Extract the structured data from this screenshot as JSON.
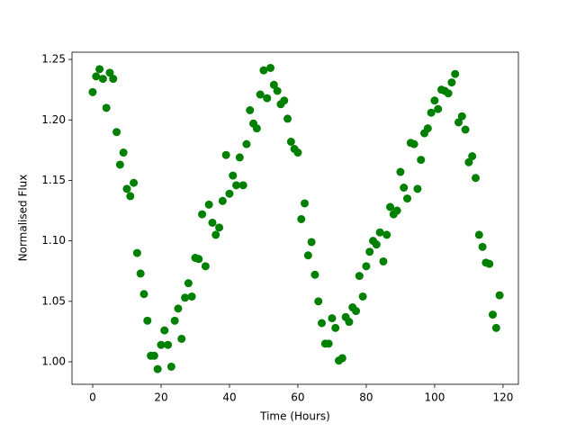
{
  "chart_data": {
    "type": "scatter",
    "x_label": "Time (Hours)",
    "y_label": "Normalised Flux",
    "color": "#008000",
    "x": [
      0,
      1,
      2,
      3,
      4,
      5,
      6,
      7,
      8,
      9,
      10,
      11,
      12,
      13,
      14,
      15,
      16,
      17,
      18,
      19,
      20,
      21,
      22,
      23,
      24,
      25,
      26,
      27,
      28,
      29,
      30,
      31,
      32,
      33,
      34,
      35,
      36,
      37,
      38,
      39,
      40,
      41,
      42,
      43,
      44,
      45,
      46,
      47,
      48,
      49,
      50,
      51,
      52,
      53,
      54,
      55,
      56,
      57,
      58,
      59,
      60,
      61,
      62,
      63,
      64,
      65,
      66,
      67,
      68,
      69,
      70,
      71,
      72,
      73,
      74,
      75,
      76,
      77,
      78,
      79,
      80,
      81,
      82,
      83,
      84,
      85,
      86,
      87,
      88,
      89,
      90,
      91,
      92,
      93,
      94,
      95,
      96,
      97,
      98,
      99,
      100,
      101,
      102,
      103,
      104,
      105,
      106,
      107,
      108,
      109,
      110,
      111,
      112,
      113,
      114,
      115,
      116,
      117,
      118,
      119
    ],
    "values": [
      1.223,
      1.236,
      1.242,
      1.234,
      1.21,
      1.239,
      1.234,
      1.19,
      1.163,
      1.173,
      1.143,
      1.137,
      1.148,
      1.09,
      1.073,
      1.056,
      1.034,
      1.005,
      1.005,
      0.994,
      1.014,
      1.026,
      1.014,
      0.996,
      1.034,
      1.044,
      1.019,
      1.053,
      1.065,
      1.054,
      1.086,
      1.085,
      1.122,
      1.079,
      1.13,
      1.115,
      1.105,
      1.111,
      1.133,
      1.171,
      1.139,
      1.154,
      1.146,
      1.169,
      1.146,
      1.18,
      1.208,
      1.197,
      1.193,
      1.221,
      1.241,
      1.218,
      1.243,
      1.229,
      1.224,
      1.213,
      1.216,
      1.201,
      1.182,
      1.176,
      1.173,
      1.118,
      1.131,
      1.088,
      1.099,
      1.072,
      1.05,
      1.032,
      1.015,
      1.015,
      1.036,
      1.028,
      1.001,
      1.003,
      1.037,
      1.033,
      1.045,
      1.042,
      1.071,
      1.054,
      1.079,
      1.091,
      1.1,
      1.097,
      1.107,
      1.083,
      1.105,
      1.128,
      1.122,
      1.125,
      1.157,
      1.144,
      1.135,
      1.181,
      1.18,
      1.143,
      1.167,
      1.189,
      1.193,
      1.206,
      1.216,
      1.209,
      1.225,
      1.224,
      1.222,
      1.231,
      1.238,
      1.198,
      1.203,
      1.192,
      1.165,
      1.17,
      1.152,
      1.105,
      1.095,
      1.082,
      1.081,
      1.039,
      1.028,
      1.055
    ],
    "xlim": [
      -6.05,
      124.5
    ],
    "xticks": [
      0,
      20,
      40,
      60,
      80,
      100,
      120
    ],
    "ylim": [
      0.9814,
      1.256
    ],
    "yticks": [
      {
        "value": 1.0,
        "label": "1.00"
      },
      {
        "value": 1.05,
        "label": "1.05"
      },
      {
        "value": 1.1,
        "label": "1.10"
      },
      {
        "value": 1.15,
        "label": "1.15"
      },
      {
        "value": 1.2,
        "label": "1.20"
      },
      {
        "value": 1.25,
        "label": "1.25"
      }
    ]
  }
}
